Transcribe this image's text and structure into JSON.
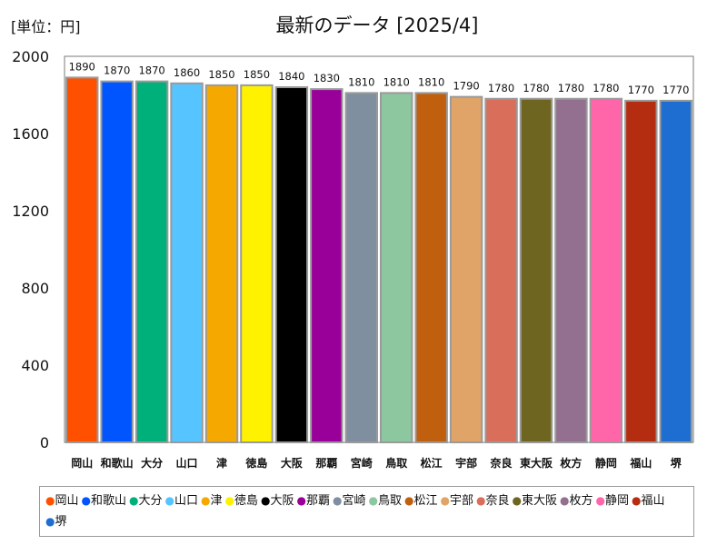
{
  "unit_label": "[単位：円]",
  "title": "最新のデータ [2025/4]",
  "chart_data": {
    "type": "bar",
    "categories": [
      "岡山",
      "和歌山",
      "大分",
      "山口",
      "津",
      "徳島",
      "大阪",
      "那覇",
      "宮崎",
      "鳥取",
      "松江",
      "宇部",
      "奈良",
      "東大阪",
      "枚方",
      "静岡",
      "福山",
      "堺"
    ],
    "values": [
      1890,
      1870,
      1870,
      1860,
      1850,
      1850,
      1840,
      1830,
      1810,
      1810,
      1810,
      1790,
      1780,
      1780,
      1780,
      1780,
      1770,
      1770
    ],
    "colors": [
      "#ff5000",
      "#0055ff",
      "#00b07a",
      "#55c4ff",
      "#f5a800",
      "#fff200",
      "#000000",
      "#990099",
      "#7f8f9f",
      "#8cc7a0",
      "#c0600f",
      "#e0a468",
      "#d96e5a",
      "#6e6620",
      "#937090",
      "#ff66aa",
      "#b52d10",
      "#1e6ed2"
    ],
    "ylim": [
      0,
      2000
    ],
    "yticks": [
      0,
      400,
      800,
      1200,
      1600,
      2000
    ],
    "legend_position": "bottom",
    "grid": false
  }
}
